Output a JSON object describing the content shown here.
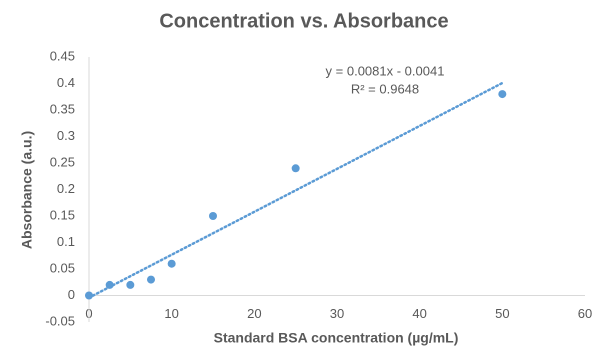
{
  "chart_data": {
    "type": "scatter",
    "title": "Concentration vs. Absorbance",
    "x_label": "Standard BSA concentration (µg/mL)",
    "y_label": "Absorbance (a.u.)",
    "x": [
      0,
      2.5,
      5,
      7.5,
      10,
      15,
      25,
      50
    ],
    "values": [
      0,
      0.02,
      0.02,
      0.03,
      0.06,
      0.15,
      0.24,
      0.38
    ],
    "color": "#5b9bd5",
    "xlim": [
      0,
      60
    ],
    "xticks": [
      0,
      10,
      20,
      30,
      40,
      50,
      60
    ],
    "ylim": [
      -0.05,
      0.45
    ],
    "yticks": [
      -0.05,
      0,
      0.05,
      0.1,
      0.15,
      0.2,
      0.25,
      0.3,
      0.35,
      0.4,
      0.45
    ],
    "grid": false,
    "trendline": {
      "slope": 0.0081,
      "intercept": -0.0041,
      "equation": "y = 0.0081x - 0.0041",
      "r_squared": "R² = 0.9648",
      "color": "#5b9bd5"
    }
  }
}
